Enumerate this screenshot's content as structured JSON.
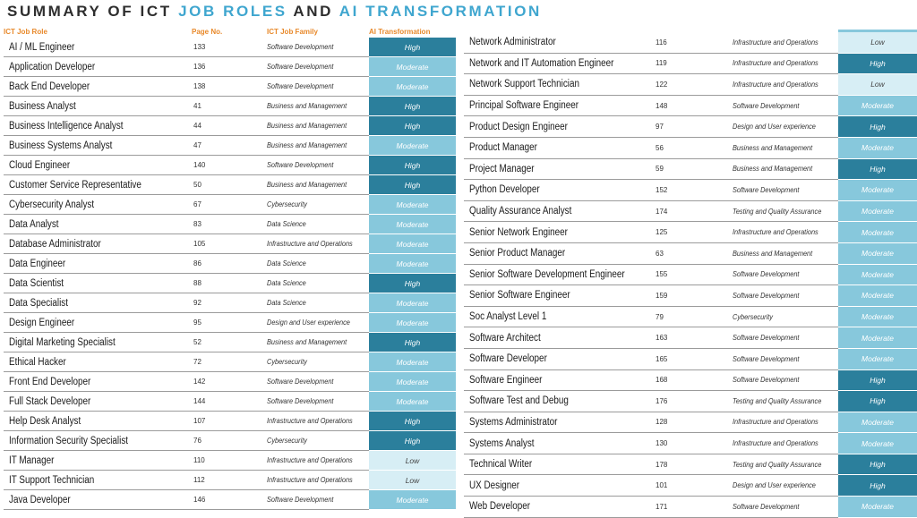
{
  "title": {
    "part1": "SUMMARY OF ICT",
    "part2": "JOB ROLES",
    "part3": "AND",
    "part4": "AI TRANSFORMATION"
  },
  "headers": {
    "role": "ICT Job Role",
    "page": "Page No.",
    "family": "ICT Job Family",
    "ai": "AI Transformation"
  },
  "colors": {
    "high": "#2b7f9c",
    "moderate": "#87c8dc",
    "low": "#d7eef5",
    "accent": "#3fa6cf",
    "header": "#e8892b"
  },
  "left_rows": [
    {
      "role": "AI / ML Engineer",
      "page": "133",
      "family": "Software Development",
      "ai": "High"
    },
    {
      "role": "Application Developer",
      "page": "136",
      "family": "Software Development",
      "ai": "Moderate"
    },
    {
      "role": "Back End Developer",
      "page": "138",
      "family": "Software Development",
      "ai": "Moderate"
    },
    {
      "role": "Business Analyst",
      "page": "41",
      "family": "Business and Management",
      "ai": "High"
    },
    {
      "role": "Business Intelligence Analyst",
      "page": "44",
      "family": "Business and Management",
      "ai": "High"
    },
    {
      "role": "Business Systems Analyst",
      "page": "47",
      "family": "Business and Management",
      "ai": "Moderate"
    },
    {
      "role": "Cloud Engineer",
      "page": "140",
      "family": "Software Development",
      "ai": "High"
    },
    {
      "role": "Customer Service Representative",
      "page": "50",
      "family": "Business and Management",
      "ai": "High"
    },
    {
      "role": "Cybersecurity Analyst",
      "page": "67",
      "family": "Cybersecurity",
      "ai": "Moderate"
    },
    {
      "role": "Data Analyst",
      "page": "83",
      "family": "Data Science",
      "ai": "Moderate"
    },
    {
      "role": "Database Administrator",
      "page": "105",
      "family": "Infrastructure and Operations",
      "ai": "Moderate"
    },
    {
      "role": "Data Engineer",
      "page": "86",
      "family": "Data Science",
      "ai": "Moderate"
    },
    {
      "role": "Data Scientist",
      "page": "88",
      "family": "Data Science",
      "ai": "High"
    },
    {
      "role": "Data Specialist",
      "page": "92",
      "family": "Data Science",
      "ai": "Moderate"
    },
    {
      "role": "Design Engineer",
      "page": "95",
      "family": "Design and User experience",
      "ai": "Moderate"
    },
    {
      "role": "Digital Marketing Specialist",
      "page": "52",
      "family": "Business and Management",
      "ai": "High"
    },
    {
      "role": "Ethical Hacker",
      "page": "72",
      "family": "Cybersecurity",
      "ai": "Moderate"
    },
    {
      "role": "Front End Developer",
      "page": "142",
      "family": "Software Development",
      "ai": "Moderate"
    },
    {
      "role": "Full Stack Developer",
      "page": "144",
      "family": "Software Development",
      "ai": "Moderate"
    },
    {
      "role": "Help Desk Analyst",
      "page": "107",
      "family": "Infrastructure and Operations",
      "ai": "High"
    },
    {
      "role": "Information Security Specialist",
      "page": "76",
      "family": "Cybersecurity",
      "ai": "High"
    },
    {
      "role": "IT Manager",
      "page": "110",
      "family": "Infrastructure and Operations",
      "ai": "Low"
    },
    {
      "role": "IT Support Technician",
      "page": "112",
      "family": "Infrastructure and Operations",
      "ai": "Low"
    },
    {
      "role": "Java Developer",
      "page": "146",
      "family": "Software Development",
      "ai": "Moderate"
    }
  ],
  "right_rows": [
    {
      "role": "Network Administrator",
      "page": "116",
      "family": "Infrastructure and Operations",
      "ai": "Low"
    },
    {
      "role": "Network and IT Automation Engineer",
      "page": "119",
      "family": "Infrastructure and Operations",
      "ai": "High"
    },
    {
      "role": "Network Support Technician",
      "page": "122",
      "family": "Infrastructure and Operations",
      "ai": "Low"
    },
    {
      "role": "Principal Software Engineer",
      "page": "148",
      "family": "Software Development",
      "ai": "Moderate"
    },
    {
      "role": "Product Design Engineer",
      "page": "97",
      "family": "Design and User experience",
      "ai": "High"
    },
    {
      "role": "Product Manager",
      "page": "56",
      "family": "Business and Management",
      "ai": "Moderate"
    },
    {
      "role": "Project Manager",
      "page": "59",
      "family": "Business and Management",
      "ai": "High"
    },
    {
      "role": "Python Developer",
      "page": "152",
      "family": "Software Development",
      "ai": "Moderate"
    },
    {
      "role": "Quality Assurance Analyst",
      "page": "174",
      "family": "Testing and Quality Assurance",
      "ai": "Moderate"
    },
    {
      "role": "Senior Network Engineer",
      "page": "125",
      "family": "Infrastructure and Operations",
      "ai": "Moderate"
    },
    {
      "role": "Senior Product Manager",
      "page": "63",
      "family": "Business and Management",
      "ai": "Moderate"
    },
    {
      "role": "Senior Software Development Engineer",
      "page": "155",
      "family": "Software Development",
      "ai": "Moderate"
    },
    {
      "role": "Senior Software Engineer",
      "page": "159",
      "family": "Software Development",
      "ai": "Moderate"
    },
    {
      "role": "Soc Analyst Level 1",
      "page": "79",
      "family": "Cybersecurity",
      "ai": "Moderate"
    },
    {
      "role": "Software Architect",
      "page": "163",
      "family": "Software Development",
      "ai": "Moderate"
    },
    {
      "role": "Software Developer",
      "page": "165",
      "family": "Software Development",
      "ai": "Moderate"
    },
    {
      "role": "Software Engineer",
      "page": "168",
      "family": "Software Development",
      "ai": "High"
    },
    {
      "role": "Software Test and Debug",
      "page": "176",
      "family": "Testing and Quality Assurance",
      "ai": "High"
    },
    {
      "role": "Systems Administrator",
      "page": "128",
      "family": "Infrastructure and Operations",
      "ai": "Moderate"
    },
    {
      "role": "Systems Analyst",
      "page": "130",
      "family": "Infrastructure and Operations",
      "ai": "Moderate"
    },
    {
      "role": "Technical Writer",
      "page": "178",
      "family": "Testing and Quality Assurance",
      "ai": "High"
    },
    {
      "role": "UX Designer",
      "page": "101",
      "family": "Design and User experience",
      "ai": "High"
    },
    {
      "role": "Web Developer",
      "page": "171",
      "family": "Software Development",
      "ai": "Moderate"
    }
  ]
}
